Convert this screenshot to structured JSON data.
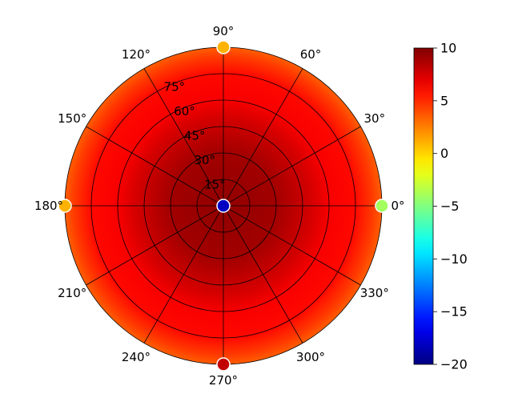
{
  "chart_data": {
    "type": "heatmap",
    "projection": "polar",
    "title": "",
    "theta_tick_labels": [
      "0°",
      "30°",
      "60°",
      "90°",
      "120°",
      "150°",
      "180°",
      "210°",
      "240°",
      "270°",
      "300°",
      "330°"
    ],
    "theta_ticks_deg": [
      0,
      30,
      60,
      90,
      120,
      150,
      180,
      210,
      240,
      270,
      300,
      330
    ],
    "radial_tick_labels": [
      "15°",
      "30°",
      "45°",
      "60°",
      "75°"
    ],
    "radial_ticks_deg": [
      15,
      30,
      45,
      60,
      75
    ],
    "r_range": [
      0,
      90
    ],
    "grid": true,
    "colormap": "jet",
    "colorbar": {
      "position": "right",
      "range": [
        -20,
        10
      ],
      "ticks": [
        10,
        5,
        0,
        -5,
        -10,
        -15,
        -20
      ],
      "tick_labels": [
        "10",
        "5",
        "0",
        "−5",
        "−10",
        "−15",
        "−20"
      ]
    },
    "field_levels": [
      {
        "r_deg": 0,
        "value": 9.5
      },
      {
        "r_deg": 30,
        "value": 9.0
      },
      {
        "r_deg": 50,
        "value": 7.5
      },
      {
        "r_deg": 60,
        "value": 6.5
      },
      {
        "r_deg": 75,
        "value": 6.0
      },
      {
        "r_deg": 85,
        "value": 4.5
      },
      {
        "r_deg": 90,
        "value": 3.5
      }
    ],
    "markers": [
      {
        "theta_deg": 0,
        "r_deg": 0,
        "value": -18
      },
      {
        "theta_deg": 0,
        "r_deg": 90,
        "value": -4
      },
      {
        "theta_deg": 90,
        "r_deg": 90,
        "value": 1
      },
      {
        "theta_deg": 180,
        "r_deg": 90,
        "value": 1
      },
      {
        "theta_deg": 270,
        "r_deg": 90,
        "value": 8
      }
    ]
  }
}
